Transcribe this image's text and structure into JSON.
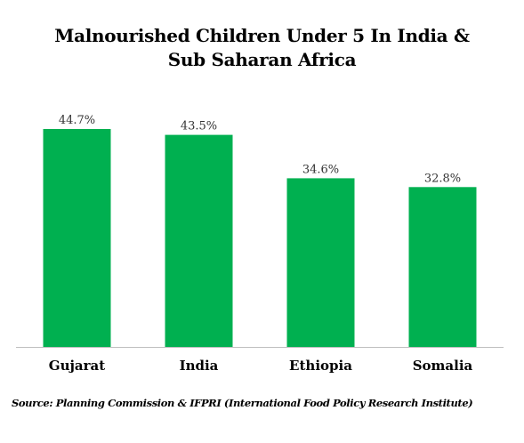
{
  "chart_data": {
    "type": "bar",
    "title_lines": [
      "Malnourished Children Under 5 In India &",
      "Sub Saharan Africa"
    ],
    "categories": [
      "Gujarat",
      "India",
      "Ethiopia",
      "Somalia"
    ],
    "values": [
      44.7,
      43.5,
      34.6,
      32.8
    ],
    "value_labels": [
      "44.7%",
      "43.5%",
      "34.6%",
      "32.8%"
    ],
    "xlabel": "",
    "ylabel": "",
    "ylim": [
      0,
      50
    ],
    "grid": false,
    "legend": "none",
    "bar_color": "#00b050",
    "source": "Source: Planning Commission & IFPRI (International Food Policy Research Institute)"
  }
}
